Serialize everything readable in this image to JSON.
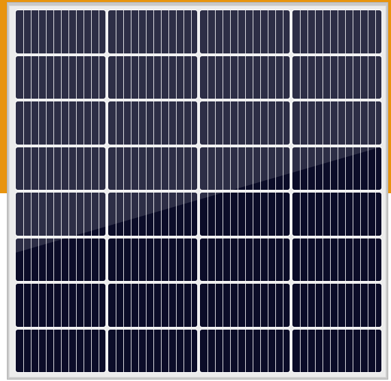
{
  "image": {
    "subject": "solar-panel",
    "colors": {
      "accent": "#e8940e",
      "frame": "#c9c9c9",
      "frame_light": "#ececec",
      "cell": "#0b0c28",
      "grid_line": "#ffffff"
    },
    "panel": {
      "columns": 4,
      "rows": 8,
      "fingers_per_cell": 11
    }
  }
}
